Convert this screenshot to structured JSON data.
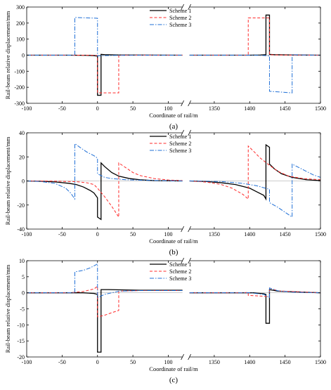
{
  "chart_data": [
    {
      "type": "line",
      "caption": "(a)",
      "xlabel": "Coordinate of rail/m",
      "ylabel": "Rail-beam  relative displacement/mm",
      "ylim": [
        -300,
        300
      ],
      "yticks": [
        -300,
        -200,
        -100,
        0,
        100,
        200,
        300
      ],
      "x_break": [
        120,
        1315
      ],
      "xticks": [
        -100,
        -50,
        0,
        50,
        100,
        1350,
        1400,
        1450,
        1500
      ],
      "legend": "top-center",
      "series": [
        {
          "name": "Scheme 1",
          "color": "#000000",
          "dash": "solid",
          "points": [
            [
              -100,
              0
            ],
            [
              -40,
              0
            ],
            [
              -15,
              -1
            ],
            [
              -5,
              -3
            ],
            [
              0,
              -6
            ],
            [
              0,
              -250
            ],
            [
              5,
              -250
            ],
            [
              5,
              5
            ],
            [
              10,
              3
            ],
            [
              30,
              1
            ],
            [
              120,
              0
            ],
            [
              1315,
              0
            ],
            [
              1400,
              0
            ],
            [
              1415,
              1
            ],
            [
              1423,
              3
            ],
            [
              1423,
              250
            ],
            [
              1428,
              250
            ],
            [
              1428,
              5
            ],
            [
              1435,
              3
            ],
            [
              1460,
              1
            ],
            [
              1500,
              0
            ]
          ]
        },
        {
          "name": "Scheme 2",
          "color": "#ff2a2a",
          "dash": "4,2.5",
          "points": [
            [
              -100,
              0
            ],
            [
              -10,
              0
            ],
            [
              -2,
              -2
            ],
            [
              0,
              -3
            ],
            [
              0,
              -235
            ],
            [
              30,
              -235
            ],
            [
              30,
              0
            ],
            [
              120,
              0
            ],
            [
              1315,
              0
            ],
            [
              1398,
              0
            ],
            [
              1398,
              232
            ],
            [
              1428,
              232
            ],
            [
              1428,
              3
            ],
            [
              1440,
              1
            ],
            [
              1500,
              0
            ]
          ]
        },
        {
          "name": "Scheme 3",
          "color": "#1f6fd6",
          "dash": "6,2,1.5,2",
          "points": [
            [
              -100,
              0
            ],
            [
              -32,
              0
            ],
            [
              -32,
              235
            ],
            [
              0,
              230
            ],
            [
              0,
              -5
            ],
            [
              10,
              -3
            ],
            [
              30,
              -1
            ],
            [
              120,
              0
            ],
            [
              1315,
              0
            ],
            [
              1400,
              0
            ],
            [
              1420,
              -2
            ],
            [
              1428,
              -5
            ],
            [
              1428,
              -225
            ],
            [
              1460,
              -235
            ],
            [
              1460,
              3
            ],
            [
              1475,
              1
            ],
            [
              1500,
              0
            ]
          ]
        }
      ]
    },
    {
      "type": "line",
      "caption": "(b)",
      "xlabel": "Coordinate of rail/m",
      "ylabel": "Rail-beam  relative displacement/mm",
      "ylim": [
        -40,
        40
      ],
      "yticks": [
        -40,
        -20,
        0,
        20,
        40
      ],
      "x_break": [
        120,
        1315
      ],
      "xticks": [
        -100,
        -50,
        0,
        50,
        100,
        1350,
        1400,
        1450,
        1500
      ],
      "legend": "top-center",
      "series": [
        {
          "name": "Scheme 1",
          "color": "#000000",
          "dash": "solid",
          "points": [
            [
              -100,
              0
            ],
            [
              -80,
              -0.3
            ],
            [
              -60,
              -0.8
            ],
            [
              -40,
              -2
            ],
            [
              -30,
              -3
            ],
            [
              -20,
              -5
            ],
            [
              -10,
              -8
            ],
            [
              -5,
              -10
            ],
            [
              0,
              -14
            ],
            [
              0,
              -30
            ],
            [
              5,
              -32
            ],
            [
              5,
              15
            ],
            [
              10,
              12
            ],
            [
              20,
              7
            ],
            [
              30,
              4
            ],
            [
              45,
              2
            ],
            [
              60,
              1
            ],
            [
              80,
              0.3
            ],
            [
              120,
              0
            ],
            [
              1315,
              0
            ],
            [
              1340,
              -0.5
            ],
            [
              1360,
              -1.5
            ],
            [
              1380,
              -3
            ],
            [
              1400,
              -6
            ],
            [
              1410,
              -9
            ],
            [
              1420,
              -12
            ],
            [
              1423,
              -15
            ],
            [
              1423,
              30
            ],
            [
              1428,
              28
            ],
            [
              1428,
              14
            ],
            [
              1435,
              10
            ],
            [
              1445,
              6
            ],
            [
              1460,
              3
            ],
            [
              1480,
              1
            ],
            [
              1500,
              0.3
            ]
          ]
        },
        {
          "name": "Scheme 2",
          "color": "#ff2a2a",
          "dash": "4,2.5",
          "points": [
            [
              -100,
              0
            ],
            [
              -60,
              -0.2
            ],
            [
              -30,
              -0.6
            ],
            [
              -15,
              -1.5
            ],
            [
              -5,
              -3
            ],
            [
              0,
              -6
            ],
            [
              10,
              -13
            ],
            [
              20,
              -21
            ],
            [
              30,
              -30
            ],
            [
              30,
              15
            ],
            [
              40,
              11
            ],
            [
              50,
              7
            ],
            [
              60,
              4.5
            ],
            [
              80,
              2
            ],
            [
              100,
              0.8
            ],
            [
              120,
              0.3
            ],
            [
              1315,
              0
            ],
            [
              1340,
              -1
            ],
            [
              1360,
              -3
            ],
            [
              1375,
              -6
            ],
            [
              1390,
              -11
            ],
            [
              1398,
              -15
            ],
            [
              1398,
              29
            ],
            [
              1405,
              25
            ],
            [
              1415,
              19
            ],
            [
              1428,
              13
            ],
            [
              1440,
              8
            ],
            [
              1455,
              4
            ],
            [
              1475,
              2
            ],
            [
              1500,
              1
            ]
          ]
        },
        {
          "name": "Scheme 3",
          "color": "#1f6fd6",
          "dash": "6,2,1.5,2",
          "points": [
            [
              -100,
              0
            ],
            [
              -80,
              -0.5
            ],
            [
              -60,
              -2
            ],
            [
              -45,
              -6
            ],
            [
              -38,
              -10
            ],
            [
              -32,
              -15
            ],
            [
              -32,
              31
            ],
            [
              -25,
              28
            ],
            [
              -15,
              24
            ],
            [
              -5,
              21
            ],
            [
              0,
              19
            ],
            [
              0,
              6
            ],
            [
              10,
              3
            ],
            [
              20,
              2
            ],
            [
              40,
              1
            ],
            [
              70,
              0.5
            ],
            [
              100,
              0.2
            ],
            [
              120,
              0
            ],
            [
              1315,
              0
            ],
            [
              1360,
              -0.5
            ],
            [
              1390,
              -2
            ],
            [
              1410,
              -4
            ],
            [
              1428,
              -7
            ],
            [
              1428,
              -18
            ],
            [
              1440,
              -22
            ],
            [
              1450,
              -26
            ],
            [
              1460,
              -30
            ],
            [
              1460,
              14
            ],
            [
              1470,
              11
            ],
            [
              1480,
              8
            ],
            [
              1490,
              5
            ],
            [
              1500,
              3
            ]
          ]
        }
      ]
    },
    {
      "type": "line",
      "caption": "(c)",
      "xlabel": "Coordinate of rail/m",
      "ylabel": "Rail-beam  relative displacement/mm",
      "ylim": [
        -20,
        10
      ],
      "yticks": [
        -20,
        -15,
        -10,
        -5,
        0,
        5,
        10
      ],
      "x_break": [
        120,
        1315
      ],
      "xticks": [
        -100,
        -50,
        0,
        50,
        100,
        1350,
        1400,
        1450,
        1500
      ],
      "legend": "top-center",
      "series": [
        {
          "name": "Scheme 1",
          "color": "#000000",
          "dash": "solid",
          "points": [
            [
              -100,
              0
            ],
            [
              -20,
              0
            ],
            [
              -5,
              -0.2
            ],
            [
              0,
              -0.5
            ],
            [
              0,
              -18.5
            ],
            [
              5,
              -18.5
            ],
            [
              5,
              1
            ],
            [
              15,
              1
            ],
            [
              60,
              0.8
            ],
            [
              120,
              0.8
            ],
            [
              1315,
              0
            ],
            [
              1405,
              0
            ],
            [
              1420,
              -0.3
            ],
            [
              1423,
              -0.5
            ],
            [
              1423,
              -9.5
            ],
            [
              1428,
              -9.5
            ],
            [
              1428,
              1
            ],
            [
              1440,
              0.5
            ],
            [
              1500,
              0
            ]
          ]
        },
        {
          "name": "Scheme 2",
          "color": "#ff2a2a",
          "dash": "4,2.5",
          "points": [
            [
              -100,
              0
            ],
            [
              -40,
              0
            ],
            [
              -20,
              0.4
            ],
            [
              -5,
              1.2
            ],
            [
              0,
              2
            ],
            [
              0,
              -7.5
            ],
            [
              10,
              -7
            ],
            [
              20,
              -6.2
            ],
            [
              30,
              -5.5
            ],
            [
              30,
              0.5
            ],
            [
              60,
              0.7
            ],
            [
              120,
              0.7
            ],
            [
              1315,
              0
            ],
            [
              1385,
              0
            ],
            [
              1398,
              0.1
            ],
            [
              1398,
              -0.8
            ],
            [
              1428,
              -1.2
            ],
            [
              1428,
              1.5
            ],
            [
              1440,
              0.6
            ],
            [
              1500,
              0
            ]
          ]
        },
        {
          "name": "Scheme 3",
          "color": "#1f6fd6",
          "dash": "6,2,1.5,2",
          "points": [
            [
              -100,
              0
            ],
            [
              -32,
              0
            ],
            [
              -32,
              6.5
            ],
            [
              -20,
              7
            ],
            [
              -10,
              7.8
            ],
            [
              0,
              9
            ],
            [
              0,
              -1.5
            ],
            [
              10,
              -0.5
            ],
            [
              30,
              0.5
            ],
            [
              60,
              0.7
            ],
            [
              120,
              0.7
            ],
            [
              1315,
              0
            ],
            [
              1400,
              0
            ],
            [
              1420,
              -0.5
            ],
            [
              1428,
              -1.5
            ],
            [
              1428,
              1.5
            ],
            [
              1440,
              0.6
            ],
            [
              1460,
              0.2
            ],
            [
              1500,
              0
            ]
          ]
        }
      ]
    }
  ]
}
